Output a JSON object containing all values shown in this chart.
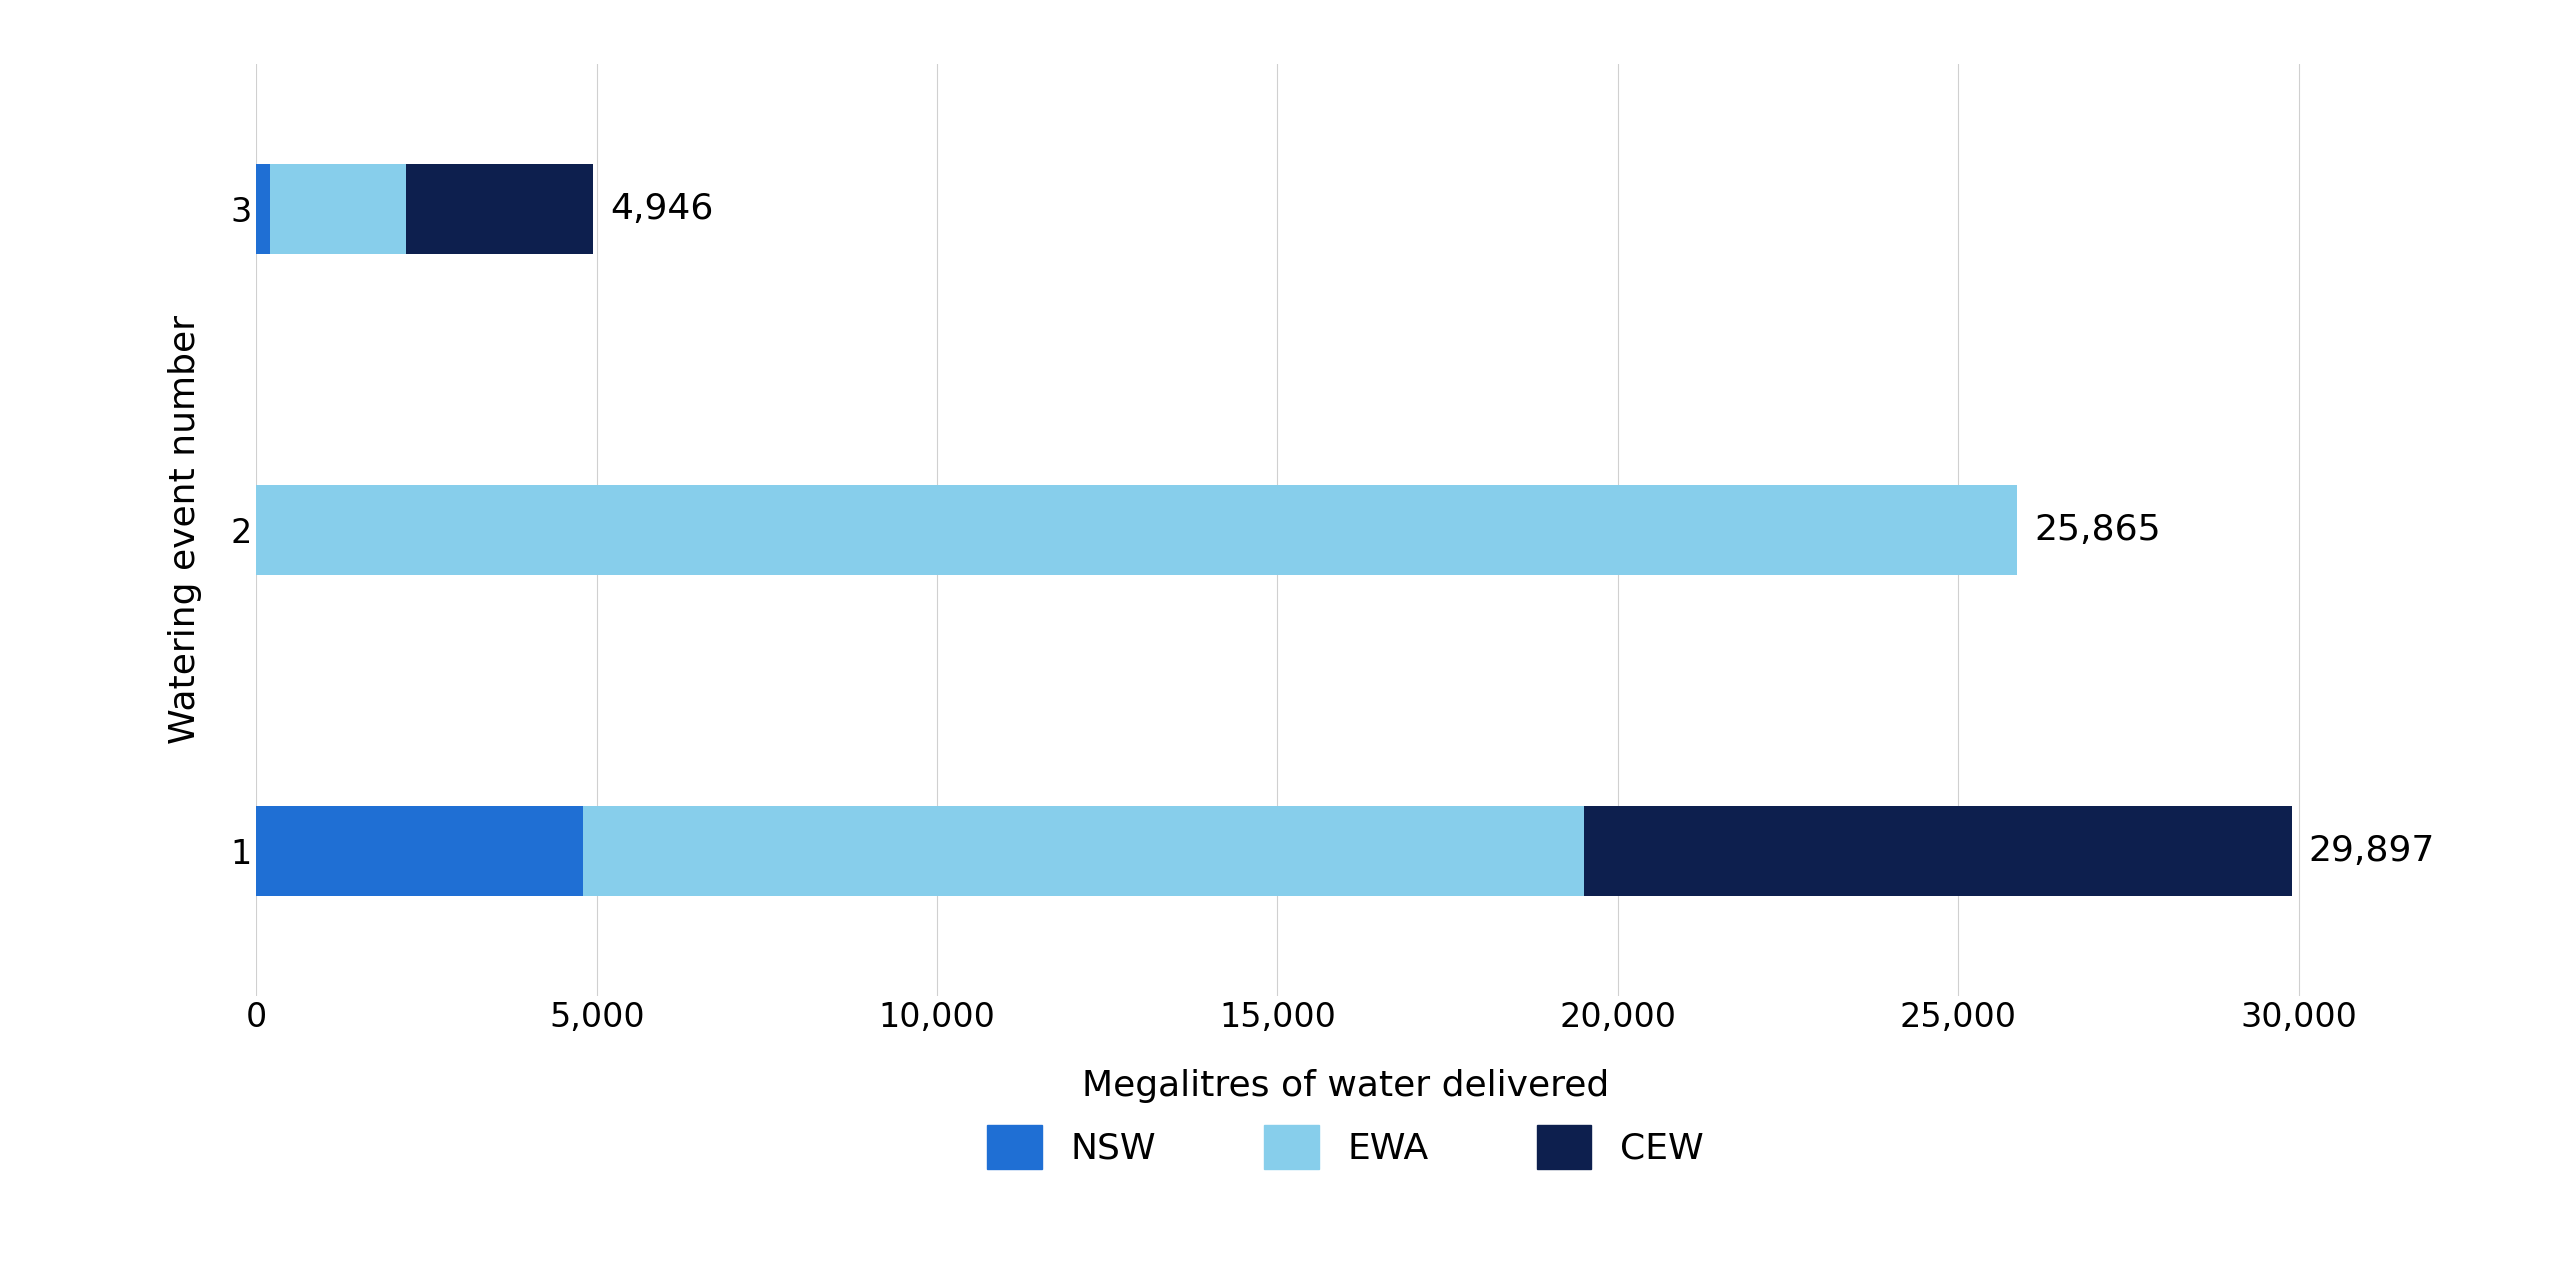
{
  "events": [
    1,
    2,
    3
  ],
  "nsw": [
    4800,
    0,
    200
  ],
  "ewa": [
    14700,
    25865,
    2000
  ],
  "cew": [
    10397,
    0,
    2746
  ],
  "totals": [
    29897,
    25865,
    4946
  ],
  "total_labels": [
    "29,897",
    "25,865",
    "4,946"
  ],
  "color_nsw": "#1F6FD4",
  "color_ewa": "#87CEEB",
  "color_cew": "#0D1F4E",
  "xlabel": "Megalitres of water delivered",
  "ylabel": "Watering event number",
  "xlim": [
    0,
    32000
  ],
  "xticks": [
    0,
    5000,
    10000,
    15000,
    20000,
    25000,
    30000
  ],
  "xticklabels": [
    "0",
    "5,000",
    "10,000",
    "15,000",
    "20,000",
    "25,000",
    "30,000"
  ],
  "legend_labels": [
    "NSW",
    "EWA",
    "CEW"
  ],
  "bar_height": 0.28,
  "background_color": "#ffffff",
  "label_fontsize": 26,
  "tick_fontsize": 24,
  "annotation_fontsize": 26,
  "legend_fontsize": 26
}
